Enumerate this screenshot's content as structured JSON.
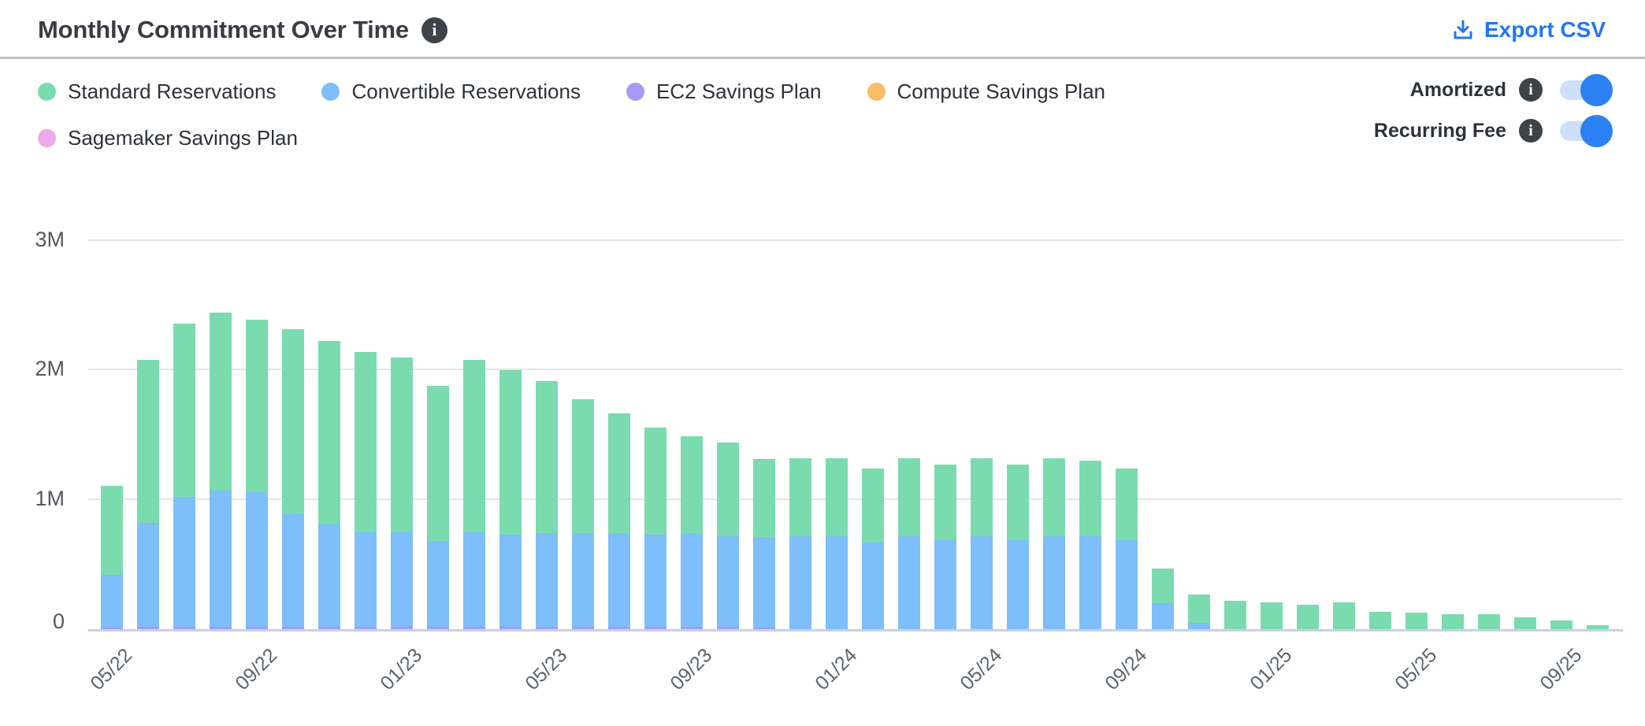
{
  "header": {
    "title": "Monthly Commitment Over Time",
    "export_label": "Export CSV",
    "export_color": "#2277f2"
  },
  "icons": {
    "title_info": "info-icon",
    "export": "download-icon",
    "toggle_info": "info-icon"
  },
  "legend": [
    {
      "label": "Standard Reservations",
      "color": "#7adcae"
    },
    {
      "label": "Convertible Reservations",
      "color": "#7dbefb"
    },
    {
      "label": "EC2 Savings Plan",
      "color": "#a89af1"
    },
    {
      "label": "Compute Savings Plan",
      "color": "#f7bd67"
    },
    {
      "label": "Sagemaker Savings Plan",
      "color": "#eda9ea"
    }
  ],
  "toggles": [
    {
      "label": "Amortized",
      "on": true
    },
    {
      "label": "Recurring Fee",
      "on": true
    }
  ],
  "chart_data": {
    "type": "bar",
    "stacked": true,
    "title": "Monthly Commitment Over Time",
    "xlabel": "",
    "ylabel": "",
    "ylim": [
      0,
      3000000
    ],
    "grid": "horizontal",
    "legend_position": "top-left",
    "y_ticks": [
      {
        "label": "0",
        "value": 0
      },
      {
        "label": "1M",
        "value": 1
      },
      {
        "label": "2M",
        "value": 2
      },
      {
        "label": "3M",
        "value": 3
      }
    ],
    "categories": [
      "05/22",
      "06/22",
      "07/22",
      "08/22",
      "09/22",
      "10/22",
      "11/22",
      "12/22",
      "01/23",
      "02/23",
      "03/23",
      "04/23",
      "05/23",
      "06/23",
      "07/23",
      "08/23",
      "09/23",
      "10/23",
      "11/23",
      "12/23",
      "01/24",
      "02/24",
      "03/24",
      "04/24",
      "05/24",
      "06/24",
      "07/24",
      "08/24",
      "09/24",
      "10/24",
      "11/24",
      "12/24",
      "01/25",
      "02/25",
      "03/25",
      "04/25",
      "05/25",
      "06/25",
      "07/25",
      "08/25",
      "09/25",
      "10/25"
    ],
    "x_tick_every": 4,
    "x_tick_labels_shown": [
      "05/22",
      "09/22",
      "01/23",
      "05/23",
      "09/23",
      "01/24",
      "05/24",
      "09/24",
      "01/25",
      "05/25",
      "09/25"
    ],
    "values_unit": "millions",
    "stack_order_bottom_to_top": [
      "EC2 Savings Plan",
      "Convertible Reservations",
      "Standard Reservations",
      "Compute Savings Plan",
      "Sagemaker Savings Plan"
    ],
    "series": [
      {
        "name": "Standard Reservations",
        "color": "#7adcae",
        "values": [
          0.69,
          1.26,
          1.34,
          1.38,
          1.33,
          1.43,
          1.42,
          1.39,
          1.35,
          1.2,
          1.33,
          1.27,
          1.18,
          1.04,
          0.93,
          0.83,
          0.75,
          0.72,
          0.6,
          0.6,
          0.6,
          0.57,
          0.6,
          0.58,
          0.6,
          0.58,
          0.6,
          0.58,
          0.55,
          0.27,
          0.22,
          0.22,
          0.21,
          0.19,
          0.21,
          0.135,
          0.13,
          0.115,
          0.115,
          0.09,
          0.07,
          0.03
        ]
      },
      {
        "name": "Convertible Reservations",
        "color": "#7dbefb",
        "values": [
          0.41,
          0.8,
          1.0,
          1.05,
          1.04,
          0.87,
          0.79,
          0.73,
          0.73,
          0.66,
          0.73,
          0.71,
          0.72,
          0.72,
          0.72,
          0.71,
          0.72,
          0.7,
          0.7,
          0.72,
          0.72,
          0.67,
          0.72,
          0.69,
          0.72,
          0.69,
          0.72,
          0.72,
          0.69,
          0.2,
          0.05,
          0,
          0,
          0,
          0,
          0,
          0,
          0,
          0,
          0,
          0,
          0
        ]
      },
      {
        "name": "EC2 Savings Plan",
        "color": "#a89af1",
        "values": [
          0.01,
          0.02,
          0.02,
          0.02,
          0.02,
          0.02,
          0.02,
          0.02,
          0.02,
          0.02,
          0.02,
          0.02,
          0.02,
          0.02,
          0.02,
          0.02,
          0.02,
          0.02,
          0.015,
          0,
          0,
          0,
          0,
          0,
          0,
          0,
          0,
          0,
          0,
          0,
          0,
          0,
          0,
          0,
          0,
          0,
          0,
          0,
          0,
          0,
          0,
          0
        ]
      },
      {
        "name": "Compute Savings Plan",
        "color": "#f7bd67",
        "values": [
          0,
          0,
          0,
          0,
          0,
          0,
          0,
          0,
          0,
          0,
          0,
          0,
          0,
          0,
          0,
          0,
          0,
          0,
          0,
          0,
          0,
          0,
          0,
          0,
          0,
          0,
          0,
          0,
          0,
          0,
          0,
          0,
          0,
          0,
          0,
          0,
          0,
          0,
          0,
          0,
          0,
          0
        ]
      },
      {
        "name": "Sagemaker Savings Plan",
        "color": "#eda9ea",
        "values": [
          0,
          0,
          0,
          0,
          0,
          0,
          0,
          0,
          0,
          0,
          0,
          0,
          0,
          0,
          0,
          0,
          0,
          0,
          0,
          0,
          0,
          0,
          0,
          0,
          0,
          0,
          0,
          0,
          0,
          0,
          0,
          0,
          0,
          0,
          0,
          0,
          0,
          0,
          0,
          0,
          0,
          0
        ]
      }
    ]
  }
}
